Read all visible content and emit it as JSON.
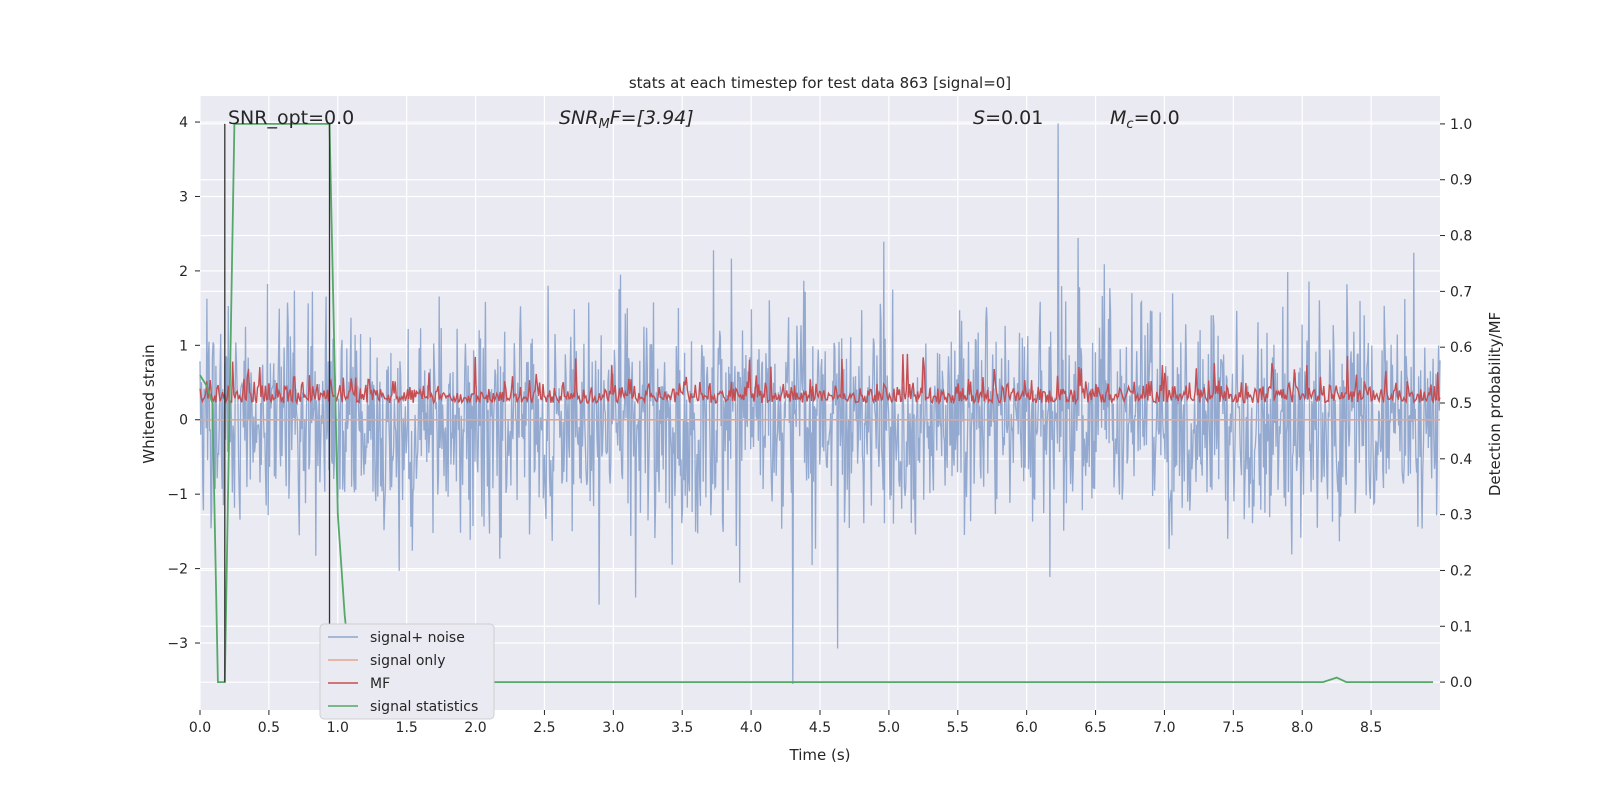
{
  "chart_data": {
    "type": "line",
    "title": "stats at each timestep for test data 863 [signal=0]",
    "xlabel": "Time (s)",
    "ylabel_left": "Whitened strain",
    "ylabel_right": "Detection probability/MF",
    "xlim": [
      0.0,
      9.0
    ],
    "ylim_left": [
      -3.9,
      4.35
    ],
    "ylim_right": [
      -0.05,
      1.05
    ],
    "x_ticks": [
      "0.0",
      "0.5",
      "1.0",
      "1.5",
      "2.0",
      "2.5",
      "3.0",
      "3.5",
      "4.0",
      "4.5",
      "5.0",
      "5.5",
      "6.0",
      "6.5",
      "7.0",
      "7.5",
      "8.0",
      "8.5"
    ],
    "x_tick_values": [
      0.0,
      0.5,
      1.0,
      1.5,
      2.0,
      2.5,
      3.0,
      3.5,
      4.0,
      4.5,
      5.0,
      5.5,
      6.0,
      6.5,
      7.0,
      7.5,
      8.0,
      8.5
    ],
    "y_left_ticks": [
      "−3",
      "−2",
      "−1",
      "0",
      "1",
      "2",
      "3",
      "4"
    ],
    "y_left_tick_values": [
      -3,
      -2,
      -1,
      0,
      1,
      2,
      3,
      4
    ],
    "y_right_ticks": [
      "0.0",
      "0.1",
      "0.2",
      "0.3",
      "0.4",
      "0.5",
      "0.6",
      "0.7",
      "0.8",
      "0.9",
      "1.0"
    ],
    "y_right_tick_values": [
      0.0,
      0.1,
      0.2,
      0.3,
      0.4,
      0.5,
      0.6,
      0.7,
      0.8,
      0.9,
      1.0
    ],
    "annotations": {
      "snr_opt": "SNR_opt=0.0",
      "snr_mf_base": "SNR",
      "snr_mf_sub": "M",
      "snr_mf_rest": "F=[3.94]",
      "s_label": "S",
      "s_value": "=0.01",
      "mc_base": "M",
      "mc_sub": "c",
      "mc_value": "=0.0"
    },
    "grid": true,
    "legend": "lower-left",
    "series": [
      {
        "name": "signal+ noise",
        "color": "#8ea5cc",
        "axis": "left",
        "amplitude_std": 0.72,
        "extremes": [
          3.98,
          -3.55
        ]
      },
      {
        "name": "signal only",
        "color": "#e5a58a",
        "axis": "left",
        "values_const": 0.0
      },
      {
        "name": "MF",
        "color": "#c44e52",
        "axis": "right",
        "range": [
          0.5,
          0.59
        ]
      },
      {
        "name": "signal statistics",
        "color": "#55a868",
        "axis": "right",
        "x": [
          0.0,
          0.05,
          0.09,
          0.13,
          0.18,
          0.25,
          0.94,
          1.0,
          1.05,
          1.1,
          1.15,
          8.15,
          8.25,
          8.32,
          8.95
        ],
        "y": [
          0.55,
          0.53,
          0.5,
          -0.0,
          0.0,
          1.0,
          1.0,
          0.3,
          0.12,
          0.0,
          0.0,
          0.0,
          0.008,
          0.0,
          0.0
        ]
      },
      {
        "name": "",
        "color": "#333333",
        "axis": "right",
        "kind": "vlines",
        "x": [
          0.18,
          0.94
        ],
        "y_range": [
          0.0,
          1.0
        ]
      }
    ]
  }
}
